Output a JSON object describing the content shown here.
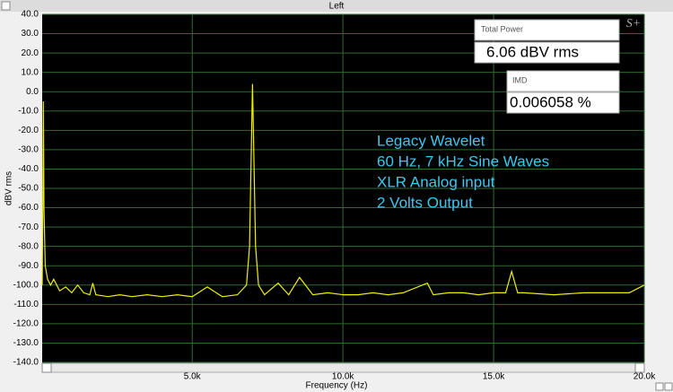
{
  "chart_data": {
    "type": "line",
    "title": "Left",
    "logo": "S+",
    "x_label": "Frequency (Hz)",
    "y_label": "dBV rms",
    "xlim": [
      20,
      20000
    ],
    "ylim": [
      -140,
      40
    ],
    "xticks": [
      {
        "value": 5000,
        "label": "5.0k"
      },
      {
        "value": 10000,
        "label": "10.0k"
      },
      {
        "value": 15000,
        "label": "15.0k"
      },
      {
        "value": 20000,
        "label": "20.0k"
      }
    ],
    "yticks": [
      {
        "value": 40,
        "label": "40.0"
      },
      {
        "value": 30,
        "label": "30.0"
      },
      {
        "value": 20,
        "label": "20.0"
      },
      {
        "value": 10,
        "label": "10.0"
      },
      {
        "value": 0,
        "label": "0.0"
      },
      {
        "value": -10,
        "label": "-10.0"
      },
      {
        "value": -20,
        "label": "-20.0"
      },
      {
        "value": -30,
        "label": "-30.0"
      },
      {
        "value": -40,
        "label": "-40.0"
      },
      {
        "value": -50,
        "label": "-50.0"
      },
      {
        "value": -60,
        "label": "-60.0"
      },
      {
        "value": -70,
        "label": "-70.0"
      },
      {
        "value": -80,
        "label": "-80.0"
      },
      {
        "value": -90,
        "label": "-90.0"
      },
      {
        "value": -100,
        "label": "-100.0"
      },
      {
        "value": -110,
        "label": "-110.0"
      },
      {
        "value": -120,
        "label": "-120.0"
      },
      {
        "value": -130,
        "label": "-130.0"
      },
      {
        "value": -140,
        "label": "-140.0"
      }
    ],
    "grid": true,
    "x": [
      20,
      40,
      60,
      80,
      120,
      200,
      300,
      400,
      600,
      800,
      1000,
      1200,
      1400,
      1600,
      1700,
      1800,
      2200,
      2600,
      3000,
      3500,
      4000,
      4500,
      5000,
      5500,
      6000,
      6500,
      6800,
      6900,
      7000,
      7100,
      7200,
      7400,
      7850,
      8200,
      8560,
      9000,
      9500,
      10000,
      10500,
      11000,
      11500,
      12000,
      12800,
      13000,
      13500,
      14000,
      14500,
      15000,
      15400,
      15600,
      15800,
      16000,
      17000,
      18000,
      19000,
      19500,
      20000
    ],
    "series": [
      {
        "name": "Left",
        "color": "#f0f000",
        "values": [
          -100,
          -60,
          -5,
          -60,
          -90,
          -97,
          -100,
          -97,
          -103,
          -101,
          -104,
          -100,
          -104,
          -105,
          -99,
          -105,
          -106,
          -105,
          -106,
          -105,
          -106,
          -105,
          -106,
          -101,
          -106,
          -105,
          -100,
          -80,
          4,
          -80,
          -100,
          -105,
          -99,
          -105,
          -96,
          -105,
          -104,
          -105,
          -105,
          -104,
          -105,
          -104,
          -99,
          -105,
          -104,
          -104,
          -105,
          -104,
          -104,
          -93,
          -104,
          -104,
          -105,
          -104,
          -104,
          -104,
          -100
        ]
      }
    ],
    "annotations": [
      "Legacy Wavelet",
      "60 Hz, 7 kHz Sine Waves",
      "XLR Analog input",
      "2 Volts Output"
    ],
    "readouts": [
      {
        "label": "Total Power",
        "value": "6.06 dBV rms"
      },
      {
        "label": "IMD",
        "value": "0.006058 %"
      }
    ]
  }
}
